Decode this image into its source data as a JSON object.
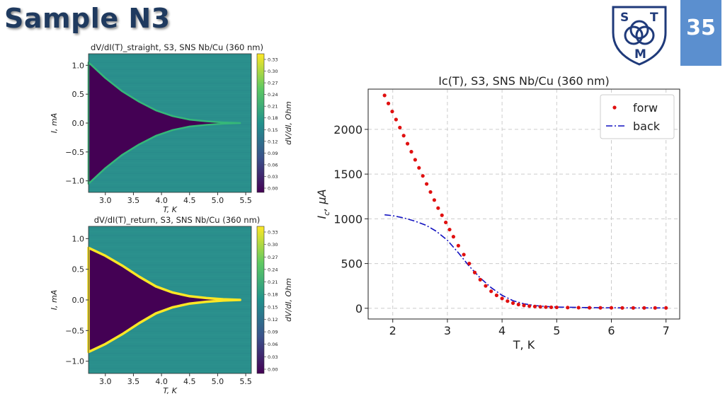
{
  "slide": {
    "title": "Sample N3",
    "page_number": "35",
    "logo_letters": [
      "S",
      "T",
      "M"
    ]
  },
  "colors": {
    "title": "#1f3a5f",
    "page_box": "#5b8fcf",
    "forw": "#e01010",
    "back": "#1010c0",
    "viridis_low": "#440154",
    "viridis_mid": "#21918c",
    "viridis_high": "#fde725"
  },
  "chart_data": [
    {
      "type": "heatmap",
      "title": "dV/dI(T)_straight, S3, SNS Nb/Cu (360 nm)",
      "xlabel": "T, K",
      "ylabel": "I, mA",
      "colorbar_label": "dV/dI, Ohm",
      "xlim": [
        2.7,
        5.6
      ],
      "ylim": [
        -1.2,
        1.2
      ],
      "xticks": [
        "3.0",
        "3.5",
        "4.0",
        "4.5",
        "5.0",
        "5.5"
      ],
      "yticks": [
        "1.0",
        "0.5",
        "0.0",
        "−0.5",
        "−1.0"
      ],
      "colorbar_ticks": [
        "0.33",
        "0.30",
        "0.27",
        "0.24",
        "0.21",
        "0.18",
        "0.15",
        "0.12",
        "0.09",
        "0.06",
        "0.03",
        "0.00"
      ],
      "superconducting_boundary": {
        "T": [
          2.7,
          3.0,
          3.3,
          3.6,
          3.9,
          4.2,
          4.5,
          4.8,
          5.1,
          5.4
        ],
        "I": [
          1.05,
          0.78,
          0.55,
          0.37,
          0.22,
          0.12,
          0.06,
          0.03,
          0.01,
          0.0
        ]
      }
    },
    {
      "type": "heatmap",
      "title": "dV/dI(T)_return, S3, SNS Nb/Cu (360 nm)",
      "xlabel": "T, K",
      "ylabel": "I, mA",
      "colorbar_label": "dV/dI, Ohm",
      "xlim": [
        2.7,
        5.6
      ],
      "ylim": [
        -1.2,
        1.2
      ],
      "xticks": [
        "3.0",
        "3.5",
        "4.0",
        "4.5",
        "5.0",
        "5.5"
      ],
      "yticks": [
        "1.0",
        "0.5",
        "0.0",
        "−0.5",
        "−1.0"
      ],
      "colorbar_ticks": [
        "0.33",
        "0.30",
        "0.27",
        "0.24",
        "0.21",
        "0.18",
        "0.15",
        "0.12",
        "0.09",
        "0.06",
        "0.03",
        "0.00"
      ],
      "superconducting_boundary": {
        "T": [
          2.7,
          3.0,
          3.3,
          3.6,
          3.9,
          4.2,
          4.5,
          4.8,
          5.1,
          5.4
        ],
        "I": [
          0.85,
          0.72,
          0.56,
          0.38,
          0.22,
          0.12,
          0.06,
          0.03,
          0.01,
          0.0
        ]
      }
    },
    {
      "type": "line",
      "title": "Ic(T), S3, SNS Nb/Cu (360 nm)",
      "xlabel": "T, K",
      "ylabel": "I_c, μA",
      "xlim": [
        1.55,
        7.25
      ],
      "ylim": [
        -120,
        2450
      ],
      "xticks": [
        2,
        3,
        4,
        5,
        6,
        7
      ],
      "yticks": [
        0,
        500,
        1000,
        1500,
        2000
      ],
      "grid": true,
      "legend_position": "top-right",
      "series": [
        {
          "name": "forw",
          "style": "dotted",
          "x": [
            1.85,
            1.92,
            1.99,
            2.06,
            2.13,
            2.2,
            2.27,
            2.34,
            2.41,
            2.48,
            2.55,
            2.62,
            2.69,
            2.76,
            2.83,
            2.9,
            2.97,
            3.04,
            3.11,
            3.2,
            3.3,
            3.4,
            3.5,
            3.6,
            3.7,
            3.8,
            3.9,
            4.0,
            4.1,
            4.2,
            4.3,
            4.4,
            4.5,
            4.6,
            4.7,
            4.8,
            4.9,
            5.0,
            5.2,
            5.4,
            5.6,
            5.8,
            6.0,
            6.2,
            6.4,
            6.6,
            6.8,
            7.0
          ],
          "y": [
            2380,
            2290,
            2200,
            2110,
            2020,
            1930,
            1840,
            1750,
            1660,
            1570,
            1480,
            1390,
            1300,
            1210,
            1120,
            1040,
            960,
            880,
            800,
            700,
            600,
            500,
            400,
            320,
            250,
            190,
            145,
            110,
            80,
            58,
            42,
            32,
            25,
            20,
            16,
            13,
            11,
            10,
            8,
            7,
            6,
            5,
            5,
            4,
            4,
            4,
            4,
            4
          ]
        },
        {
          "name": "back",
          "style": "dashdot",
          "x": [
            1.85,
            2.0,
            2.2,
            2.4,
            2.6,
            2.8,
            3.0,
            3.2,
            3.4,
            3.6,
            3.8,
            4.0,
            4.2,
            4.4,
            4.6,
            4.8,
            5.0,
            5.5,
            6.0,
            6.5,
            7.0
          ],
          "y": [
            1045,
            1035,
            1010,
            975,
            930,
            860,
            760,
            620,
            470,
            340,
            230,
            145,
            85,
            50,
            30,
            20,
            14,
            8,
            5,
            4,
            4
          ]
        }
      ]
    }
  ]
}
